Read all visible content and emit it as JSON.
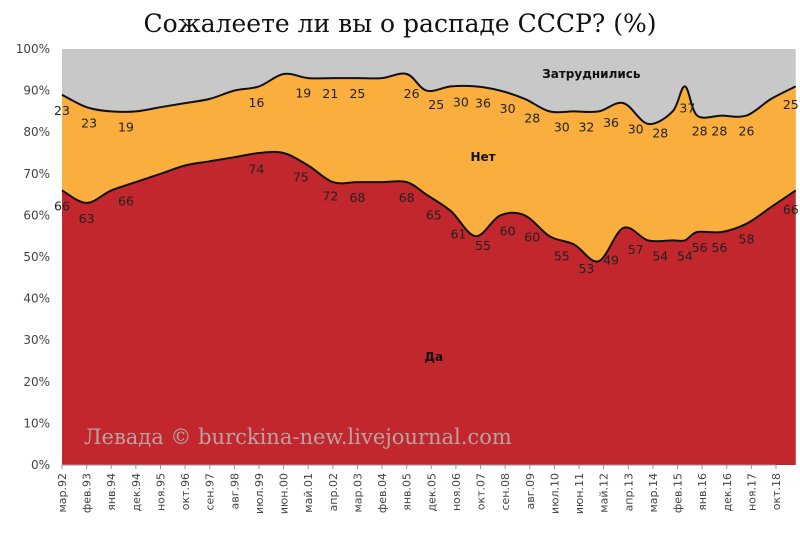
{
  "chart_data": {
    "type": "area",
    "title": "Сожалеете ли вы о распаде СССР? (%)",
    "stacked": true,
    "ylim": [
      0,
      100
    ],
    "y_ticks": [
      "0%",
      "10%",
      "20%",
      "30%",
      "40%",
      "50%",
      "60%",
      "70%",
      "80%",
      "90%",
      "100%"
    ],
    "x_tick_labels": [
      "мар.92",
      "фев.93",
      "янв.94",
      "дек.94",
      "ноя.95",
      "окт.96",
      "сен.97",
      "авг.98",
      "июл.99",
      "июн.00",
      "май.01",
      "апр.02",
      "мар.03",
      "фев.04",
      "янв.05",
      "дек.05",
      "ноя.06",
      "окт.07",
      "сен.08",
      "авг.09",
      "июл.10",
      "июн.11",
      "май.12",
      "апр.13",
      "мар.14",
      "фев.15",
      "янв.16",
      "дек.16",
      "ноя.17",
      "окт.18"
    ],
    "grid": false,
    "series": [
      {
        "name": "Да",
        "color": "#c1272d",
        "x": [
          0,
          1,
          2,
          3,
          4,
          5,
          6,
          7,
          8,
          9,
          10,
          11,
          12,
          13,
          14,
          14.8,
          15.8,
          16.8,
          17.8,
          18.8,
          19.8,
          20.8,
          21.8,
          22.8,
          23.8,
          24.8,
          25.3,
          25.8,
          26.8,
          27.8,
          28.8,
          29.8
        ],
        "values": [
          66,
          63,
          66,
          68,
          70,
          72,
          73,
          74,
          75,
          75,
          72,
          68,
          68,
          68,
          68,
          65,
          61,
          55,
          60,
          60,
          55,
          53,
          49,
          57,
          54,
          54,
          54,
          56,
          56,
          58,
          62,
          66
        ]
      },
      {
        "name": "Нет",
        "color": "#f9ae3d",
        "x": [
          0,
          1,
          2,
          3,
          4,
          5,
          6,
          7,
          8,
          9,
          10,
          11,
          12,
          13,
          14,
          14.8,
          15.8,
          16.8,
          17.8,
          18.8,
          19.8,
          20.8,
          21.8,
          22.8,
          23.8,
          24.8,
          25.3,
          25.8,
          26.8,
          27.8,
          28.8,
          29.8
        ],
        "values": [
          23,
          23,
          19,
          17,
          16,
          15,
          15,
          16,
          16,
          19,
          21,
          25,
          25,
          25,
          26,
          25,
          30,
          36,
          30,
          28,
          30,
          32,
          36,
          30,
          28,
          31,
          37,
          28,
          28,
          26,
          26,
          25
        ]
      },
      {
        "name": "Затруднились",
        "color": "#c8c8c8",
        "x": [
          0,
          1,
          2,
          3,
          4,
          5,
          6,
          7,
          8,
          9,
          10,
          11,
          12,
          13,
          14,
          14.8,
          15.8,
          16.8,
          17.8,
          18.8,
          19.8,
          20.8,
          21.8,
          22.8,
          23.8,
          24.8,
          25.3,
          25.8,
          26.8,
          27.8,
          28.8,
          29.8
        ],
        "values": [
          11,
          14,
          15,
          15,
          14,
          13,
          12,
          10,
          9,
          6,
          7,
          7,
          7,
          7,
          6,
          10,
          9,
          9,
          10,
          12,
          15,
          15,
          15,
          13,
          18,
          15,
          9,
          16,
          16,
          16,
          12,
          9
        ]
      }
    ],
    "data_labels": [
      {
        "series": "Да",
        "x": 0,
        "value": "66"
      },
      {
        "series": "Да",
        "x": 1,
        "value": "63"
      },
      {
        "series": "Да",
        "x": 2.6,
        "value": "66"
      },
      {
        "series": "Да",
        "x": 7.9,
        "value": "74"
      },
      {
        "series": "Да",
        "x": 9.7,
        "value": "75"
      },
      {
        "series": "Да",
        "x": 10.9,
        "value": "72"
      },
      {
        "series": "Да",
        "x": 12,
        "value": "68"
      },
      {
        "series": "Да",
        "x": 14,
        "value": "68"
      },
      {
        "series": "Да",
        "x": 15.1,
        "value": "65"
      },
      {
        "series": "Да",
        "x": 16.1,
        "value": "61"
      },
      {
        "series": "Да",
        "x": 17.1,
        "value": "55"
      },
      {
        "series": "Да",
        "x": 18.1,
        "value": "60"
      },
      {
        "series": "Да",
        "x": 19.1,
        "value": "60"
      },
      {
        "series": "Да",
        "x": 20.3,
        "value": "55"
      },
      {
        "series": "Да",
        "x": 21.3,
        "value": "53"
      },
      {
        "series": "Да",
        "x": 22.3,
        "value": "49"
      },
      {
        "series": "Да",
        "x": 23.3,
        "value": "57"
      },
      {
        "series": "Да",
        "x": 24.3,
        "value": "54"
      },
      {
        "series": "Да",
        "x": 25.3,
        "value": "54"
      },
      {
        "series": "Да",
        "x": 25.9,
        "value": "56"
      },
      {
        "series": "Да",
        "x": 26.7,
        "value": "56"
      },
      {
        "series": "Да",
        "x": 27.8,
        "value": "58"
      },
      {
        "series": "Да",
        "x": 29.6,
        "value": "66"
      },
      {
        "series": "Нет",
        "x": 0,
        "value": "23"
      },
      {
        "series": "Нет",
        "x": 1.1,
        "value": "23"
      },
      {
        "series": "Нет",
        "x": 2.6,
        "value": "19"
      },
      {
        "series": "Нет",
        "x": 7.9,
        "value": "16"
      },
      {
        "series": "Нет",
        "x": 9.8,
        "value": "19"
      },
      {
        "series": "Нет",
        "x": 10.9,
        "value": "21"
      },
      {
        "series": "Нет",
        "x": 12,
        "value": "25"
      },
      {
        "series": "Нет",
        "x": 14.2,
        "value": "26"
      },
      {
        "series": "Нет",
        "x": 15.2,
        "value": "25"
      },
      {
        "series": "Нет",
        "x": 16.2,
        "value": "30"
      },
      {
        "series": "Нет",
        "x": 17.1,
        "value": "36"
      },
      {
        "series": "Нет",
        "x": 18.1,
        "value": "30"
      },
      {
        "series": "Нет",
        "x": 19.1,
        "value": "28"
      },
      {
        "series": "Нет",
        "x": 20.3,
        "value": "30"
      },
      {
        "series": "Нет",
        "x": 21.3,
        "value": "32"
      },
      {
        "series": "Нет",
        "x": 22.3,
        "value": "36"
      },
      {
        "series": "Нет",
        "x": 23.3,
        "value": "30"
      },
      {
        "series": "Нет",
        "x": 24.3,
        "value": "28"
      },
      {
        "series": "Нет",
        "x": 25.4,
        "value": "37"
      },
      {
        "series": "Нет",
        "x": 25.9,
        "value": "28"
      },
      {
        "series": "Нет",
        "x": 26.7,
        "value": "28"
      },
      {
        "series": "Нет",
        "x": 27.8,
        "value": "26"
      },
      {
        "series": "Нет",
        "x": 29.6,
        "value": "25"
      }
    ],
    "series_labels": [
      {
        "text": "Да",
        "x": 15.1,
        "y": 26,
        "color": "#ffffff"
      },
      {
        "text": "Нет",
        "x": 17.1,
        "y": 74,
        "color": "#111111"
      },
      {
        "text": "Затруднились",
        "x": 21.5,
        "y": 94,
        "color": "#111111"
      }
    ],
    "watermark": "Левада © burckina-new.livejournal.com"
  }
}
